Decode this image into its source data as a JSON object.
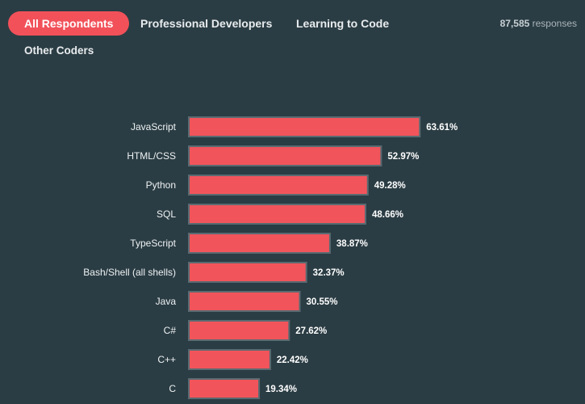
{
  "tabs": [
    {
      "label": "All Respondents",
      "active": true
    },
    {
      "label": "Professional Developers",
      "active": false
    },
    {
      "label": "Learning to Code",
      "active": false
    },
    {
      "label": "Other Coders",
      "active": false
    }
  ],
  "responses": {
    "count": "87,585",
    "suffix": " responses"
  },
  "colors": {
    "accent": "#f2515a",
    "bar_fill": "#f2545b",
    "bar_border": "#5b6a71",
    "background": "#2b3d44"
  },
  "chart_data": {
    "type": "bar",
    "orientation": "horizontal",
    "title": "",
    "xlabel": "",
    "ylabel": "",
    "xlim": [
      0,
      100
    ],
    "value_suffix": "%",
    "categories": [
      "JavaScript",
      "HTML/CSS",
      "Python",
      "SQL",
      "TypeScript",
      "Bash/Shell (all shells)",
      "Java",
      "C#",
      "C++",
      "C"
    ],
    "values": [
      63.61,
      52.97,
      49.28,
      48.66,
      38.87,
      32.37,
      30.55,
      27.62,
      22.42,
      19.34
    ],
    "value_labels": [
      "63.61%",
      "52.97%",
      "49.28%",
      "48.66%",
      "38.87%",
      "32.37%",
      "30.55%",
      "27.62%",
      "22.42%",
      "19.34%"
    ]
  }
}
